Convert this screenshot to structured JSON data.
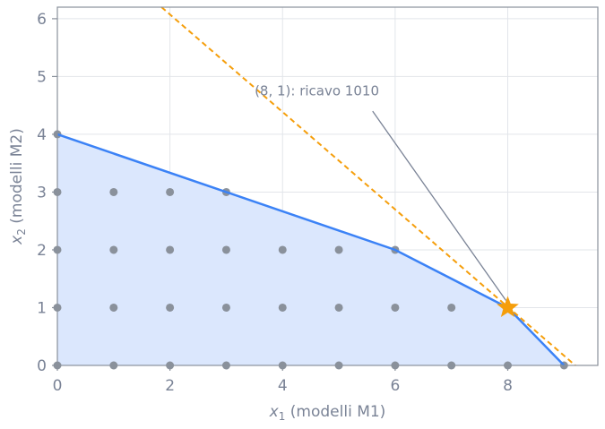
{
  "chart_data": {
    "type": "scatter",
    "xlabel_var": "x",
    "xlabel_sub": "1",
    "xlabel_rest": " (modelli M1)",
    "ylabel_var": "x",
    "ylabel_sub": "2",
    "ylabel_rest": " (modelli M2)",
    "xlim": [
      0,
      9.6
    ],
    "ylim": [
      0,
      6.2
    ],
    "xticks": [
      0,
      2,
      4,
      6,
      8
    ],
    "yticks": [
      0,
      1,
      2,
      3,
      4,
      5,
      6
    ],
    "grid": true,
    "feasible_region": [
      [
        0,
        0
      ],
      [
        0,
        4
      ],
      [
        3,
        3
      ],
      [
        6,
        2
      ],
      [
        8,
        1
      ],
      [
        9,
        0
      ]
    ],
    "integer_points": [
      [
        0,
        0
      ],
      [
        1,
        0
      ],
      [
        2,
        0
      ],
      [
        3,
        0
      ],
      [
        4,
        0
      ],
      [
        5,
        0
      ],
      [
        6,
        0
      ],
      [
        7,
        0
      ],
      [
        8,
        0
      ],
      [
        9,
        0
      ],
      [
        0,
        1
      ],
      [
        1,
        1
      ],
      [
        2,
        1
      ],
      [
        3,
        1
      ],
      [
        4,
        1
      ],
      [
        5,
        1
      ],
      [
        6,
        1
      ],
      [
        7,
        1
      ],
      [
        8,
        1
      ],
      [
        0,
        2
      ],
      [
        1,
        2
      ],
      [
        2,
        2
      ],
      [
        3,
        2
      ],
      [
        4,
        2
      ],
      [
        5,
        2
      ],
      [
        6,
        2
      ],
      [
        0,
        3
      ],
      [
        1,
        3
      ],
      [
        2,
        3
      ],
      [
        3,
        3
      ],
      [
        0,
        4
      ]
    ],
    "objective_line": [
      [
        1.85,
        6.2
      ],
      [
        9.2,
        0
      ]
    ],
    "optimum": {
      "x": 8,
      "y": 1
    },
    "annotation": {
      "text": "(8, 1): ricavo 1010",
      "x": 5.0,
      "y": 4.75
    },
    "colors": {
      "region_fill": "#dbe7fd",
      "boundary": "#3b82f6",
      "points": "#8a919b",
      "objective": "#f59e0b",
      "optimum": "#f59e0b",
      "grid": "#e2e5ea",
      "axis": "#8a919b",
      "annotation_arrow": "#7a8396"
    }
  }
}
